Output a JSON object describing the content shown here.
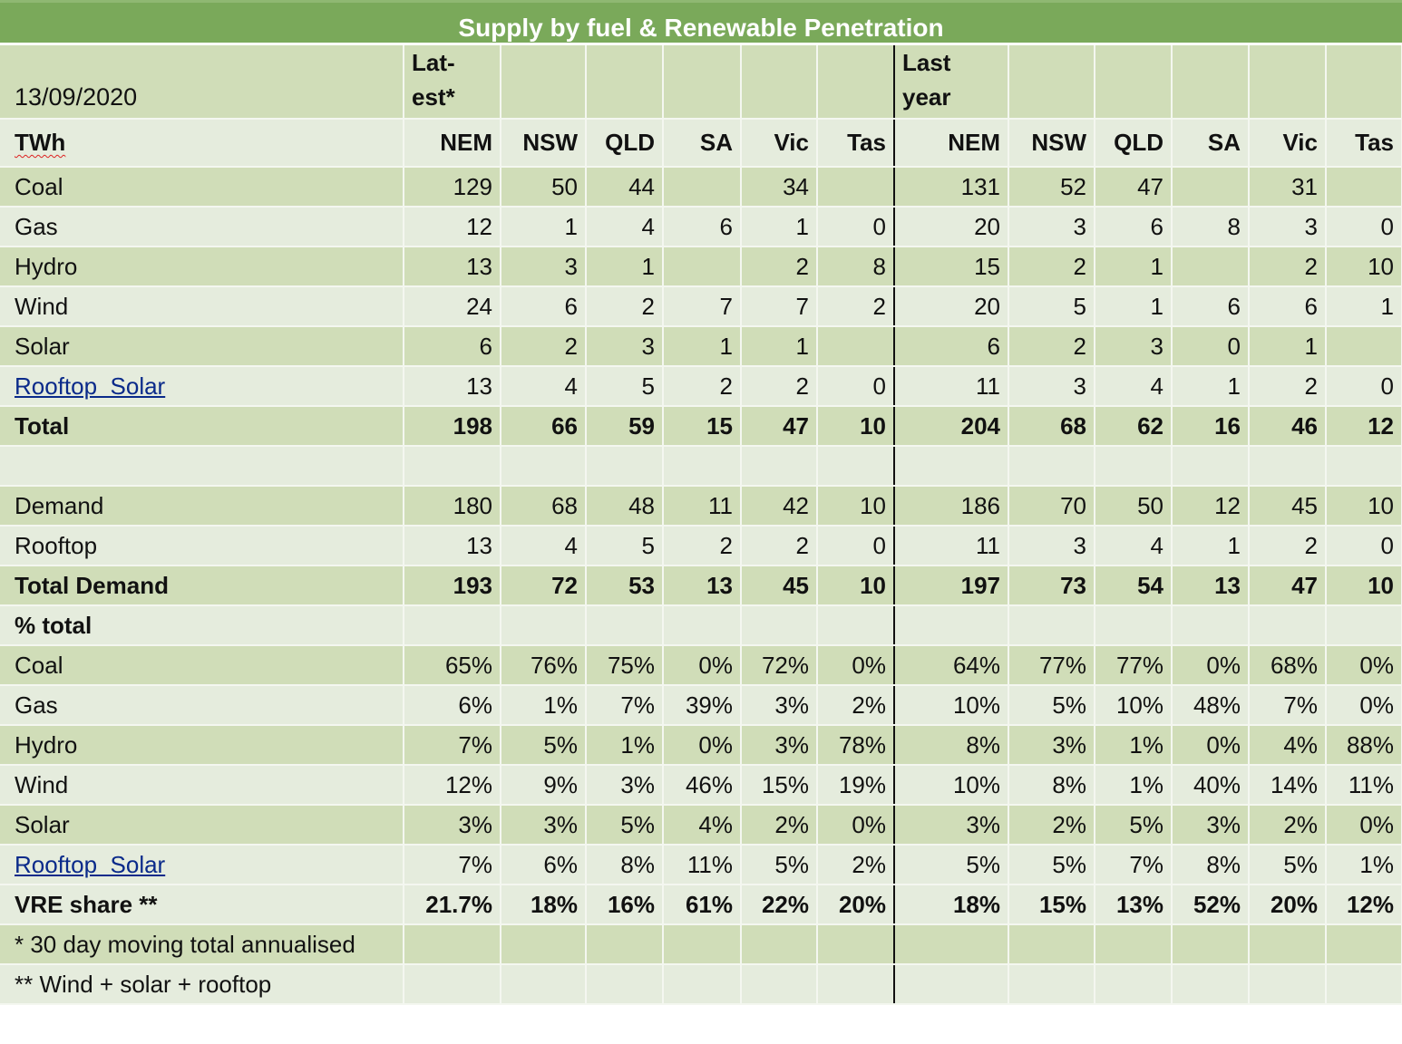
{
  "title": "Supply by fuel & Renewable Penetration",
  "date": "13/09/2020",
  "group_latest": "Lat- est*",
  "group_last_year": "Last year",
  "unit": "TWh",
  "columns": [
    "NEM",
    "NSW",
    "QLD",
    "SA",
    "Vic",
    "Tas",
    "NEM",
    "NSW",
    "QLD",
    "SA",
    "Vic",
    "Tas"
  ],
  "rows": [
    {
      "label": "Coal",
      "values": [
        "129",
        "50",
        "44",
        "",
        "34",
        "",
        "131",
        "52",
        "47",
        "",
        "31",
        ""
      ]
    },
    {
      "label": "Gas",
      "values": [
        "12",
        "1",
        "4",
        "6",
        "1",
        "0",
        "20",
        "3",
        "6",
        "8",
        "3",
        "0"
      ]
    },
    {
      "label": "Hydro",
      "values": [
        "13",
        "3",
        "1",
        "",
        "2",
        "8",
        "15",
        "2",
        "1",
        "",
        "2",
        "10"
      ]
    },
    {
      "label": "Wind",
      "values": [
        "24",
        "6",
        "2",
        "7",
        "7",
        "2",
        "20",
        "5",
        "1",
        "6",
        "6",
        "1"
      ]
    },
    {
      "label": "Solar",
      "values": [
        "6",
        "2",
        "3",
        "1",
        "1",
        "",
        "6",
        "2",
        "3",
        "0",
        "1",
        ""
      ]
    },
    {
      "label": "Rooftop  Solar",
      "link": true,
      "values": [
        "13",
        "4",
        "5",
        "2",
        "2",
        "0",
        "11",
        "3",
        "4",
        "1",
        "2",
        "0"
      ]
    },
    {
      "label": "Total",
      "bold": true,
      "values": [
        "198",
        "66",
        "59",
        "15",
        "47",
        "10",
        "204",
        "68",
        "62",
        "16",
        "46",
        "12"
      ]
    },
    {
      "label": "",
      "values": [
        "",
        "",
        "",
        "",
        "",
        "",
        "",
        "",
        "",
        "",
        "",
        ""
      ]
    },
    {
      "label": "Demand",
      "values": [
        "180",
        "68",
        "48",
        "11",
        "42",
        "10",
        "186",
        "70",
        "50",
        "12",
        "45",
        "10"
      ]
    },
    {
      "label": "Rooftop",
      "values": [
        "13",
        "4",
        "5",
        "2",
        "2",
        "0",
        "11",
        "3",
        "4",
        "1",
        "2",
        "0"
      ]
    },
    {
      "label": "Total Demand",
      "bold": true,
      "values": [
        "193",
        "72",
        "53",
        "13",
        "45",
        "10",
        "197",
        "73",
        "54",
        "13",
        "47",
        "10"
      ]
    },
    {
      "label": "% total",
      "bold": true,
      "values": [
        "",
        "",
        "",
        "",
        "",
        "",
        "",
        "",
        "",
        "",
        "",
        ""
      ]
    },
    {
      "label": "Coal",
      "values": [
        "65%",
        "76%",
        "75%",
        "0%",
        "72%",
        "0%",
        "64%",
        "77%",
        "77%",
        "0%",
        "68%",
        "0%"
      ]
    },
    {
      "label": "Gas",
      "values": [
        "6%",
        "1%",
        "7%",
        "39%",
        "3%",
        "2%",
        "10%",
        "5%",
        "10%",
        "48%",
        "7%",
        "0%"
      ]
    },
    {
      "label": "Hydro",
      "values": [
        "7%",
        "5%",
        "1%",
        "0%",
        "3%",
        "78%",
        "8%",
        "3%",
        "1%",
        "0%",
        "4%",
        "88%"
      ]
    },
    {
      "label": "Wind",
      "values": [
        "12%",
        "9%",
        "3%",
        "46%",
        "15%",
        "19%",
        "10%",
        "8%",
        "1%",
        "40%",
        "14%",
        "11%"
      ]
    },
    {
      "label": "Solar",
      "values": [
        "3%",
        "3%",
        "5%",
        "4%",
        "2%",
        "0%",
        "3%",
        "2%",
        "5%",
        "3%",
        "2%",
        "0%"
      ]
    },
    {
      "label": "Rooftop  Solar",
      "link": true,
      "values": [
        "7%",
        "6%",
        "8%",
        "11%",
        "5%",
        "2%",
        "5%",
        "5%",
        "7%",
        "8%",
        "5%",
        "1%"
      ]
    },
    {
      "label": "VRE share **",
      "bold": true,
      "values": [
        "21.7%",
        "18%",
        "16%",
        "61%",
        "22%",
        "20%",
        "18%",
        "15%",
        "13%",
        "52%",
        "20%",
        "12%"
      ]
    },
    {
      "label": "* 30 day moving total annualised",
      "foot": true,
      "values": [
        "",
        "",
        "",
        "",
        "",
        "",
        "",
        "",
        "",
        "",
        "",
        ""
      ]
    },
    {
      "label": "** Wind + solar + rooftop",
      "foot": true,
      "values": [
        "",
        "",
        "",
        "",
        "",
        "",
        "",
        "",
        "",
        "",
        "",
        ""
      ]
    }
  ],
  "colors": {
    "title_bg": "#7aa95a",
    "row_dark": "#d0ddb8",
    "row_light": "#e5ecdd",
    "link": "#0a2a8a"
  }
}
